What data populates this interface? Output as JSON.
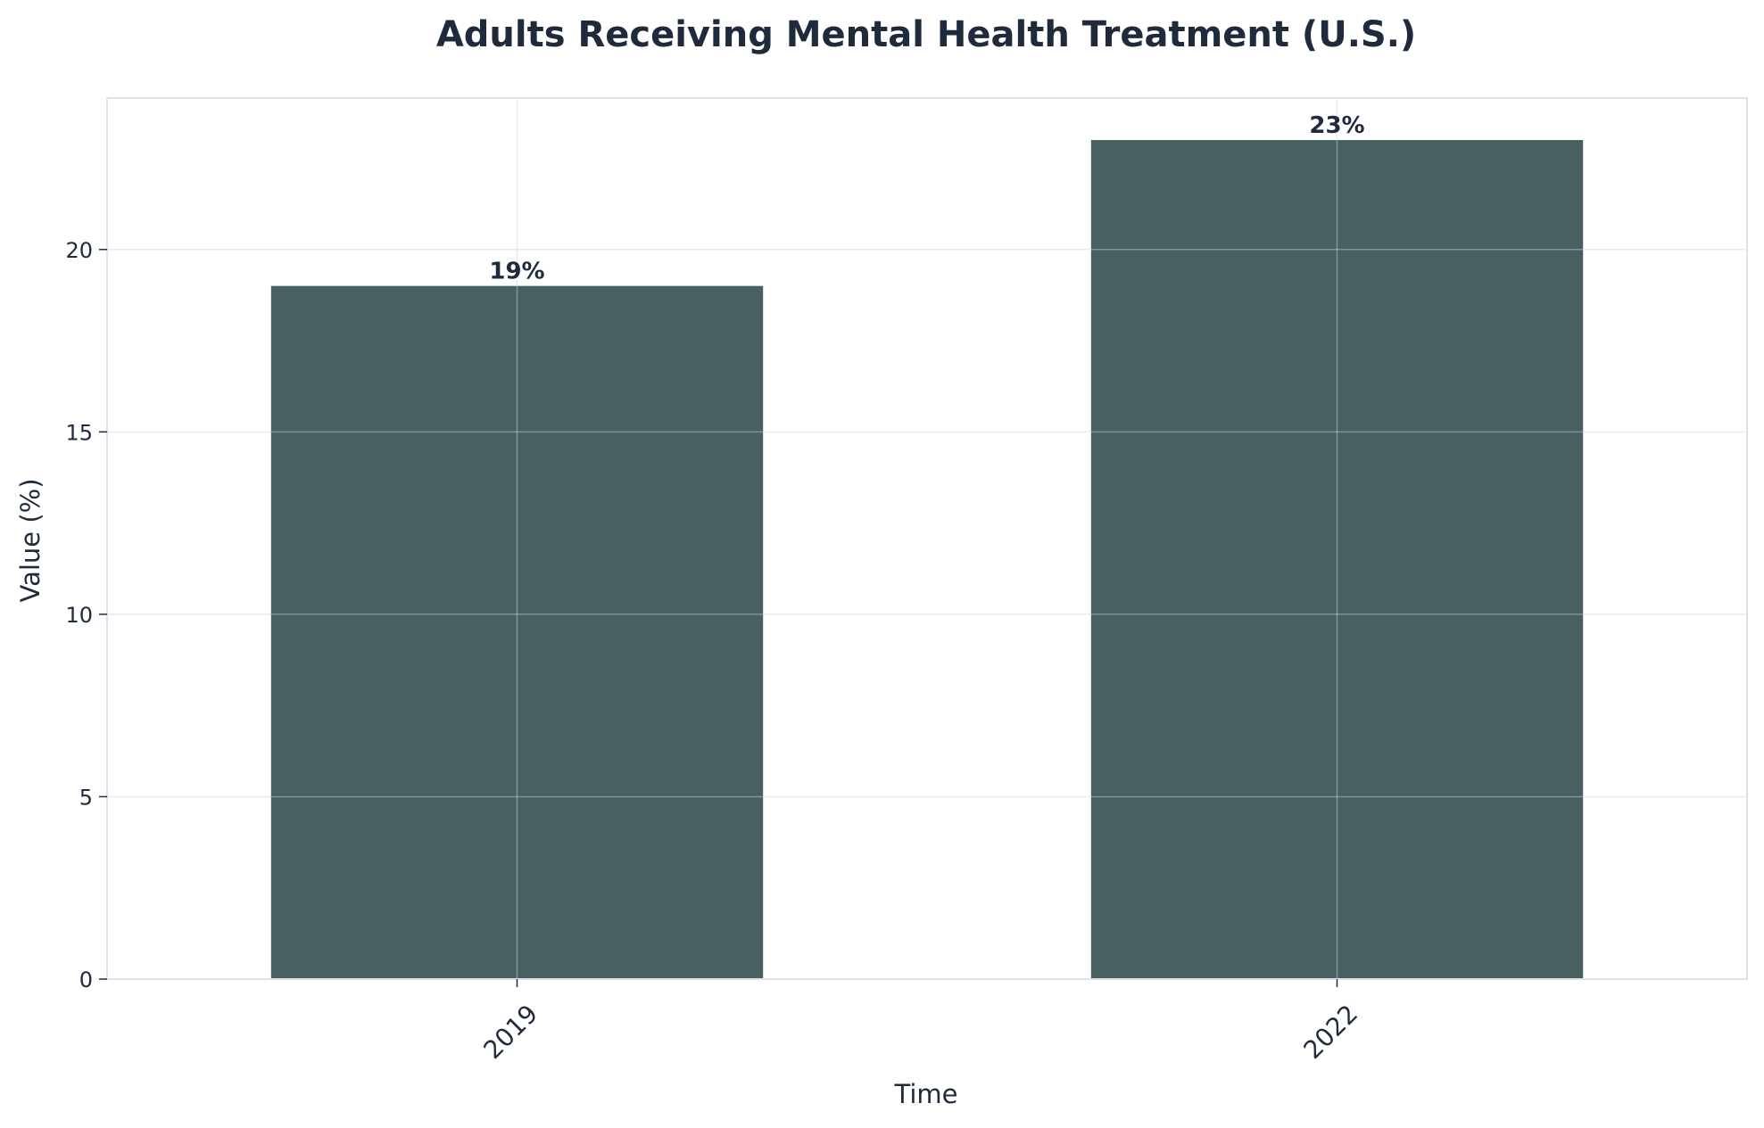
{
  "chart_data": {
    "type": "bar",
    "title": "Adults Receiving Mental Health Treatment (U.S.)",
    "xlabel": "Time",
    "ylabel": "Value (%)",
    "categories": [
      "2019",
      "2022"
    ],
    "values": [
      19,
      23
    ],
    "data_labels": [
      "19%",
      "23%"
    ],
    "ylim": [
      0,
      24.15
    ],
    "yticks": [
      0,
      5,
      10,
      15,
      20
    ],
    "ytick_labels": [
      "0",
      "5",
      "10",
      "15",
      "20"
    ],
    "grid": true,
    "legend": "none",
    "colors": {
      "bar": "#486060",
      "text": "#1f2a3c",
      "axes_border": "#dde3ee",
      "grid": "#e9edf3"
    }
  }
}
